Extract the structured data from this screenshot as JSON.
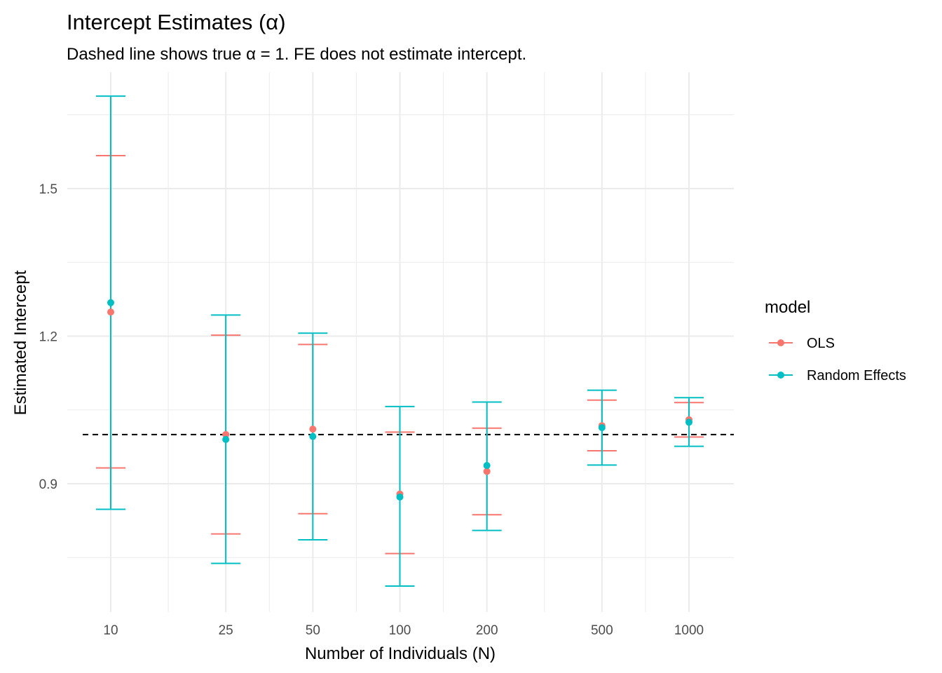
{
  "chart_data": {
    "type": "scatter",
    "title": "Intercept Estimates (α)",
    "subtitle": "Dashed line shows true α = 1. FE does not estimate intercept.",
    "xlabel": "Number of Individuals (N)",
    "ylabel": "Estimated Intercept",
    "x_scale": "log10",
    "x_ticks": [
      10,
      25,
      50,
      100,
      200,
      500,
      1000
    ],
    "y_ticks": [
      0.9,
      1.2,
      1.5
    ],
    "ylim": [
      0.63,
      1.74
    ],
    "reference_line": {
      "y": 1.0,
      "style": "dashed"
    },
    "grid": true,
    "legend": {
      "title": "model",
      "position": "right"
    },
    "series": [
      {
        "name": "OLS",
        "color": "#F8766D",
        "x": [
          10,
          25,
          50,
          100,
          200,
          500,
          1000
        ],
        "y": [
          1.249,
          1.0,
          1.011,
          0.879,
          0.925,
          1.018,
          1.03
        ],
        "ymin": [
          0.932,
          0.798,
          0.839,
          0.758,
          0.837,
          0.967,
          0.995
        ],
        "ymax": [
          1.567,
          1.202,
          1.183,
          1.005,
          1.013,
          1.07,
          1.065
        ]
      },
      {
        "name": "Random Effects",
        "color": "#00BFC4",
        "x": [
          10,
          25,
          50,
          100,
          200,
          500,
          1000
        ],
        "y": [
          1.268,
          0.99,
          0.996,
          0.873,
          0.937,
          1.014,
          1.025
        ],
        "ymin": [
          0.848,
          0.738,
          0.786,
          0.692,
          0.805,
          0.938,
          0.976
        ],
        "ymax": [
          1.688,
          1.243,
          1.206,
          1.057,
          1.066,
          1.09,
          1.075
        ]
      }
    ]
  }
}
